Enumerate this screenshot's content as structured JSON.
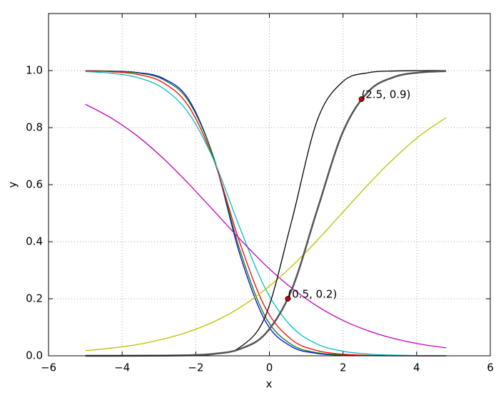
{
  "chart_data": {
    "type": "line",
    "x_label": "x",
    "y_label": "y",
    "xlim": [
      -6,
      6
    ],
    "ylim": [
      0,
      1.2
    ],
    "xticks": [
      {
        "value": -6,
        "label": "−6"
      },
      {
        "value": -4,
        "label": "−4"
      },
      {
        "value": -2,
        "label": "−2"
      },
      0,
      2,
      4,
      6
    ],
    "yticks": [
      {
        "value": 0,
        "label": "0.0"
      },
      0.2,
      0.4,
      0.6,
      0.8,
      {
        "value": 1,
        "label": "1.0"
      }
    ],
    "grid": true,
    "x": [
      -5,
      -4.3,
      -3.6,
      -2.9,
      -2.2,
      -1.5,
      -0.8,
      -0.1,
      0.6,
      1.3,
      2.0,
      2.7,
      3.4,
      4.1,
      4.8
    ],
    "series": [
      {
        "color": "#0000ff",
        "values": [
          0.9996,
          0.9983,
          0.9933,
          0.9734,
          0.9002,
          0.69,
          0.3543,
          0.1192,
          0.0323,
          0.0082,
          0.002,
          0.0005,
          0.0001,
          0,
          0
        ]
      },
      {
        "color": "#008000",
        "values": [
          0.9994,
          0.9978,
          0.9918,
          0.9695,
          0.8937,
          0.6896,
          0.37,
          0.1345,
          0.0395,
          0.0108,
          0.0029,
          0.0008,
          0.0002,
          0,
          0
        ]
      },
      {
        "color": "#ff0000",
        "values": [
          0.9988,
          0.996,
          0.9871,
          0.9587,
          0.876,
          0.6824,
          0.3953,
          0.1659,
          0.057,
          0.0181,
          0.0056,
          0.0017,
          0.0005,
          0.0002,
          0
        ]
      },
      {
        "color": "#00bfbf",
        "values": [
          0.9966,
          0.9909,
          0.9761,
          0.9388,
          0.852,
          0.6835,
          0.4477,
          0.2333,
          0.1025,
          0.0411,
          0.0158,
          0.006,
          0.0023,
          0.0008,
          0.0003
        ]
      },
      {
        "color": "#bf00bf",
        "values": [
          0.882,
          0.834,
          0.772,
          0.694,
          0.604,
          0.507,
          0.409,
          0.317,
          0.238,
          0.174,
          0.124,
          0.087,
          0.06,
          0.041,
          0.028
        ]
      },
      {
        "color": "#bfbf00",
        "values": [
          0.018,
          0.027,
          0.039,
          0.058,
          0.084,
          0.12,
          0.169,
          0.234,
          0.313,
          0.405,
          0.504,
          0.603,
          0.694,
          0.773,
          0.835
        ]
      },
      {
        "color": "#000000",
        "values": [
          0,
          0,
          0,
          0.0002,
          0.0011,
          0.0057,
          0.0299,
          0.1419,
          0.47,
          0.826,
          0.962,
          0.9928,
          0.9986,
          0.9997,
          1
        ]
      },
      {
        "color": "#555555",
        "values": [
          0,
          0,
          0.0002,
          0.0006,
          0.002,
          0.0069,
          0.0237,
          0.0786,
          0.23,
          0.512,
          0.786,
          0.928,
          0.978,
          0.9937,
          0.9982
        ]
      }
    ],
    "points": [
      {
        "x": 0.5,
        "y": 0.2,
        "label": "(0.5, 0.2)"
      },
      {
        "x": 2.5,
        "y": 0.9,
        "label": "(2.5, 0.9)"
      }
    ],
    "point_color": "#cc0000"
  }
}
